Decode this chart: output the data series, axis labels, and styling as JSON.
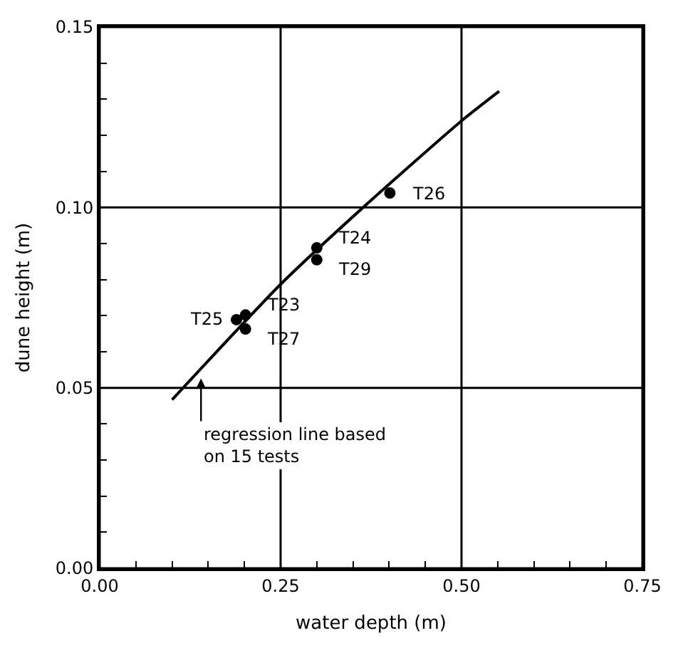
{
  "chart_data": {
    "type": "scatter",
    "xlabel": "water depth (m)",
    "ylabel": "dune height (m)",
    "xlim": [
      0,
      0.75
    ],
    "ylim": [
      0,
      0.15
    ],
    "xticks": [
      {
        "value": 0,
        "label": "0.00"
      },
      {
        "value": 0.05,
        "label": null
      },
      {
        "value": 0.1,
        "label": null
      },
      {
        "value": 0.15,
        "label": null
      },
      {
        "value": 0.2,
        "label": null
      },
      {
        "value": 0.25,
        "label": "0.25"
      },
      {
        "value": 0.3,
        "label": null
      },
      {
        "value": 0.35,
        "label": null
      },
      {
        "value": 0.4,
        "label": null
      },
      {
        "value": 0.45,
        "label": null
      },
      {
        "value": 0.5,
        "label": "0.50"
      },
      {
        "value": 0.55,
        "label": null
      },
      {
        "value": 0.6,
        "label": null
      },
      {
        "value": 0.65,
        "label": null
      },
      {
        "value": 0.7,
        "label": null
      },
      {
        "value": 0.75,
        "label": "0.75"
      }
    ],
    "yticks": [
      {
        "value": 0,
        "label": "0.00"
      },
      {
        "value": 0.01,
        "label": null
      },
      {
        "value": 0.02,
        "label": null
      },
      {
        "value": 0.03,
        "label": null
      },
      {
        "value": 0.04,
        "label": null
      },
      {
        "value": 0.05,
        "label": "0.05"
      },
      {
        "value": 0.06,
        "label": null
      },
      {
        "value": 0.07,
        "label": null
      },
      {
        "value": 0.08,
        "label": null
      },
      {
        "value": 0.09,
        "label": null
      },
      {
        "value": 0.1,
        "label": "0.10"
      },
      {
        "value": 0.11,
        "label": null
      },
      {
        "value": 0.12,
        "label": null
      },
      {
        "value": 0.13,
        "label": null
      },
      {
        "value": 0.14,
        "label": null
      },
      {
        "value": 0.15,
        "label": "0.15"
      }
    ],
    "grid": true,
    "series": [
      {
        "marker": "circle",
        "color": "#000000",
        "x": [
          0.401,
          0.3,
          0.3,
          0.2015,
          0.189,
          0.2015
        ],
        "values": [
          0.104,
          0.0888,
          0.0855,
          0.0702,
          0.0689,
          0.0663
        ]
      },
      {
        "type": "line",
        "marker": "none",
        "line_style": "solid",
        "color": "#000000",
        "x": [
          0.1,
          0.25,
          0.364,
          0.5,
          0.552
        ],
        "values": [
          0.0467,
          0.0787,
          0.1,
          0.124,
          0.1322
        ]
      }
    ],
    "annotations": [
      {
        "text": "T26",
        "x": 0.401,
        "y": 0.104
      },
      {
        "text": "T24",
        "x": 0.3,
        "y": 0.0888
      },
      {
        "text": "T29",
        "x": 0.3,
        "y": 0.0855
      },
      {
        "text": "T23",
        "x": 0.2015,
        "y": 0.0702
      },
      {
        "text": "T25",
        "x": 0.189,
        "y": 0.0689
      },
      {
        "text": "T27",
        "x": 0.2015,
        "y": 0.0663
      },
      {
        "text": "regression line based\non 15 tests",
        "x": 0.14,
        "y": 0.0526
      }
    ]
  }
}
